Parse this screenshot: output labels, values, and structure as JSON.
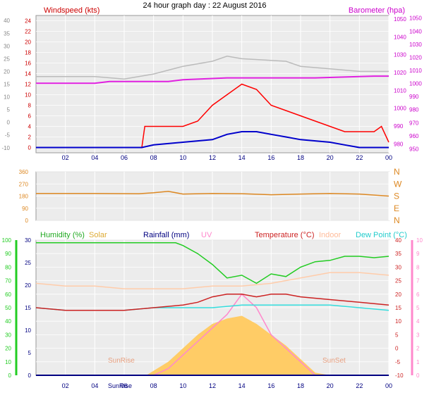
{
  "title": "24 hour graph day : 22 August 2016",
  "x_ticks": [
    "02",
    "04",
    "06",
    "08",
    "10",
    "12",
    "14",
    "16",
    "18",
    "20",
    "22",
    "00"
  ],
  "chart_data": [
    {
      "type": "line",
      "panel": "wind-barometer",
      "left_title": "Windspeed (kts)",
      "right_title": "Barometer (hpa)",
      "left_axis_ticks": [
        0,
        2,
        4,
        6,
        8,
        10,
        12,
        14,
        16,
        18,
        20,
        22,
        24
      ],
      "far_left_axis_ticks": [
        -10,
        -5,
        0,
        5,
        10,
        15,
        20,
        25,
        30,
        35,
        40
      ],
      "right_axis_ticks": [
        980,
        990,
        1000,
        1010,
        1020,
        1030,
        1040,
        1050
      ],
      "right_axis_ticks_extra": [
        950,
        960,
        970,
        980,
        990,
        1000,
        1010,
        1020,
        1030,
        1040,
        1050
      ],
      "colors": {
        "gust": "#ff0000",
        "avg": "#0000cc",
        "baro": "#e020e0",
        "gray": "#bbbbbb",
        "left_title": "#cc0000",
        "right_title": "#cc00cc"
      },
      "series": [
        {
          "key": "baro",
          "x": [
            0,
            3,
            4,
            5,
            9,
            10,
            13,
            17,
            19,
            23,
            24
          ],
          "values": [
            1014,
            1014,
            1014,
            1015,
            1015,
            1016,
            1017,
            1017,
            1017,
            1018,
            1018
          ]
        },
        {
          "key": "gray",
          "x": [
            0,
            4,
            6,
            8,
            10,
            12,
            13,
            14,
            17,
            18,
            20,
            22,
            24
          ],
          "values": [
            18,
            18,
            17,
            19,
            22,
            24,
            26,
            25,
            24,
            22,
            21,
            20,
            20
          ]
        },
        {
          "key": "gust",
          "x": [
            0,
            7.2,
            7.4,
            8,
            9,
            10,
            11,
            12,
            13,
            14,
            15,
            16,
            17,
            18,
            19,
            20,
            21,
            22,
            23,
            23.5,
            24
          ],
          "values": [
            0,
            0,
            4,
            4,
            4,
            4,
            5,
            8,
            10,
            12,
            11,
            8,
            7,
            6,
            5,
            4,
            3,
            3,
            3,
            4,
            1
          ]
        },
        {
          "key": "avg",
          "x": [
            0,
            7.2,
            8,
            10,
            12,
            13,
            14,
            15,
            16,
            17,
            18,
            20,
            21,
            22,
            23,
            24
          ],
          "values": [
            0,
            0,
            0.5,
            1,
            1.5,
            2.5,
            3,
            3,
            2.5,
            2,
            1.5,
            1,
            0.5,
            0,
            0,
            0
          ]
        }
      ]
    },
    {
      "type": "line",
      "panel": "wind-direction",
      "left_axis_ticks": [
        0,
        90,
        180,
        270,
        360
      ],
      "right_axis_labels": [
        "N",
        "W",
        "S",
        "E",
        "N"
      ],
      "colors": {
        "dir": "#dd8822"
      },
      "series": [
        {
          "key": "dir",
          "x": [
            0,
            4,
            7,
            8,
            9,
            10,
            12,
            14,
            16,
            18,
            20,
            22,
            24
          ],
          "values": [
            200,
            200,
            198,
            205,
            215,
            195,
            200,
            198,
            190,
            195,
            200,
            195,
            180
          ]
        }
      ]
    },
    {
      "type": "line",
      "panel": "temperature-humidity",
      "labels": {
        "humidity": "Humidity (%)",
        "solar": "Solar",
        "rainfall": "Rainfall (mm)",
        "uv": "UV",
        "temperature": "Temperature (°C)",
        "indoor": "Indoor",
        "dewpoint": "Dew Point (°C)",
        "sunrise": "SunRise",
        "sunset": "SunSet"
      },
      "humidity_ticks": [
        0,
        10,
        20,
        30,
        40,
        50,
        60,
        70,
        80,
        90,
        100
      ],
      "rain_ticks": [
        0,
        5,
        10,
        15,
        20,
        25,
        30
      ],
      "temp_ticks": [
        -10,
        -5,
        0,
        5,
        10,
        15,
        20,
        25,
        30,
        35,
        40
      ],
      "uv_ticks": [
        0,
        1,
        2,
        3,
        4,
        5,
        6,
        7,
        8,
        9,
        10
      ],
      "colors": {
        "humidity": "#22cc22",
        "solar": "#ffcc66",
        "rain": "#000080",
        "uv": "#ff88cc",
        "temp": "#cc2222",
        "indoor": "#ffccaa",
        "dew": "#33dddd"
      },
      "series": [
        {
          "key": "humidity",
          "x": [
            0,
            9.5,
            10,
            11,
            12,
            13,
            14,
            15,
            16,
            17,
            18,
            19,
            20,
            21,
            22,
            23,
            24
          ],
          "values": [
            98,
            98,
            96,
            90,
            82,
            72,
            74,
            68,
            75,
            73,
            80,
            84,
            85,
            88,
            88,
            87,
            88
          ]
        },
        {
          "key": "indoor",
          "x": [
            0,
            2,
            4,
            6,
            8,
            10,
            12,
            14,
            16,
            18,
            20,
            22,
            24
          ],
          "values": [
            24,
            23,
            23,
            22,
            22,
            22,
            23,
            23,
            24,
            26,
            28,
            28,
            27
          ]
        },
        {
          "key": "temp",
          "x": [
            0,
            2,
            4,
            6,
            8,
            10,
            11,
            12,
            13,
            14,
            15,
            16,
            17,
            18,
            20,
            22,
            24
          ],
          "values": [
            15,
            14,
            14,
            14,
            15,
            16,
            17,
            19,
            20,
            20,
            19,
            20,
            20,
            19,
            18,
            17,
            16
          ]
        },
        {
          "key": "dew",
          "x": [
            0,
            2,
            4,
            6,
            8,
            10,
            12,
            14,
            16,
            18,
            20,
            22,
            24
          ],
          "values": [
            15,
            14,
            14,
            14,
            15,
            15,
            15,
            16,
            16,
            16,
            16,
            15,
            14
          ]
        },
        {
          "key": "solar",
          "x": [
            0,
            7.5,
            9,
            10,
            11,
            12,
            13,
            14,
            15,
            16,
            17,
            18,
            19,
            20,
            24
          ],
          "values": [
            0,
            0,
            10,
            20,
            30,
            38,
            42,
            44,
            38,
            30,
            22,
            12,
            2,
            0,
            0
          ]
        },
        {
          "key": "uv",
          "x": [
            0,
            8,
            9,
            10,
            11,
            12,
            13,
            14,
            15,
            16,
            17,
            18,
            19,
            24
          ],
          "values": [
            0,
            0,
            0.5,
            1.5,
            2.5,
            3.5,
            4.5,
            6,
            5,
            3,
            2,
            1,
            0,
            0
          ]
        },
        {
          "key": "rain",
          "x": [
            0,
            24
          ],
          "values": [
            0,
            0
          ]
        }
      ]
    }
  ]
}
